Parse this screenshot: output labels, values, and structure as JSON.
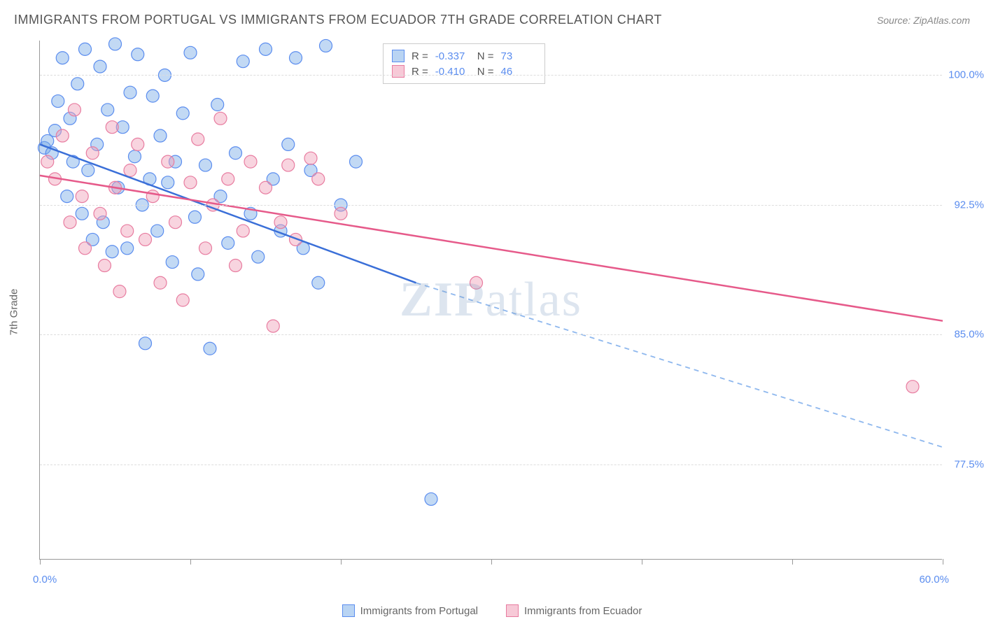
{
  "header": {
    "title": "IMMIGRANTS FROM PORTUGAL VS IMMIGRANTS FROM ECUADOR 7TH GRADE CORRELATION CHART",
    "source": "Source: ZipAtlas.com"
  },
  "axes": {
    "y_title": "7th Grade",
    "x_min_label": "0.0%",
    "x_max_label": "60.0%",
    "x_min": 0,
    "x_max": 60,
    "y_min": 72,
    "y_max": 102,
    "y_ticks": [
      77.5,
      85.0,
      92.5,
      100.0
    ],
    "y_tick_labels": [
      "77.5%",
      "85.0%",
      "92.5%",
      "100.0%"
    ],
    "x_tick_positions": [
      0,
      10,
      20,
      30,
      40,
      50,
      60
    ],
    "grid_color": "#dddddd",
    "axis_color": "#999999",
    "tick_label_color": "#5b8def",
    "label_fontsize": 15
  },
  "series": [
    {
      "name": "Immigrants from Portugal",
      "color_fill": "rgba(120,170,230,0.45)",
      "color_stroke": "#5b8def",
      "swatch_fill": "#b9d4f3",
      "swatch_border": "#5b8def",
      "correlation_r": "-0.337",
      "correlation_n": "73",
      "regression": {
        "x1": 0,
        "y1": 96.0,
        "x2": 25,
        "y2": 88.0,
        "x3": 60,
        "y3": 78.5,
        "solid_until_x": 25
      },
      "line_color_solid": "#3a6fd8",
      "line_color_dash": "#8fb8ee",
      "points": [
        [
          0.3,
          95.8
        ],
        [
          0.5,
          96.2
        ],
        [
          0.8,
          95.5
        ],
        [
          1.0,
          96.8
        ],
        [
          1.2,
          98.5
        ],
        [
          1.5,
          101.0
        ],
        [
          1.8,
          93.0
        ],
        [
          2.0,
          97.5
        ],
        [
          2.2,
          95.0
        ],
        [
          2.5,
          99.5
        ],
        [
          2.8,
          92.0
        ],
        [
          3.0,
          101.5
        ],
        [
          3.2,
          94.5
        ],
        [
          3.5,
          90.5
        ],
        [
          3.8,
          96.0
        ],
        [
          4.0,
          100.5
        ],
        [
          4.2,
          91.5
        ],
        [
          4.5,
          98.0
        ],
        [
          4.8,
          89.8
        ],
        [
          5.0,
          101.8
        ],
        [
          5.2,
          93.5
        ],
        [
          5.5,
          97.0
        ],
        [
          5.8,
          90.0
        ],
        [
          6.0,
          99.0
        ],
        [
          6.3,
          95.3
        ],
        [
          6.5,
          101.2
        ],
        [
          6.8,
          92.5
        ],
        [
          7.0,
          84.5
        ],
        [
          7.3,
          94.0
        ],
        [
          7.5,
          98.8
        ],
        [
          7.8,
          91.0
        ],
        [
          8.0,
          96.5
        ],
        [
          8.3,
          100.0
        ],
        [
          8.5,
          93.8
        ],
        [
          8.8,
          89.2
        ],
        [
          9.0,
          95.0
        ],
        [
          9.5,
          97.8
        ],
        [
          10.0,
          101.3
        ],
        [
          10.3,
          91.8
        ],
        [
          10.5,
          88.5
        ],
        [
          11.0,
          94.8
        ],
        [
          11.3,
          84.2
        ],
        [
          11.8,
          98.3
        ],
        [
          12.0,
          93.0
        ],
        [
          12.5,
          90.3
        ],
        [
          13.0,
          95.5
        ],
        [
          13.5,
          100.8
        ],
        [
          14.0,
          92.0
        ],
        [
          14.5,
          89.5
        ],
        [
          15.0,
          101.5
        ],
        [
          15.5,
          94.0
        ],
        [
          16.0,
          91.0
        ],
        [
          16.5,
          96.0
        ],
        [
          17.0,
          101.0
        ],
        [
          17.5,
          90.0
        ],
        [
          18.0,
          94.5
        ],
        [
          18.5,
          88.0
        ],
        [
          19.0,
          101.7
        ],
        [
          20.0,
          92.5
        ],
        [
          21.0,
          95.0
        ],
        [
          26.0,
          75.5
        ]
      ]
    },
    {
      "name": "Immigrants from Ecuador",
      "color_fill": "rgba(240,160,185,0.45)",
      "color_stroke": "#e87ca0",
      "swatch_fill": "#f7c9d7",
      "swatch_border": "#e87ca0",
      "correlation_r": "-0.410",
      "correlation_n": "46",
      "regression": {
        "x1": 0,
        "y1": 94.2,
        "x2": 60,
        "y2": 85.8,
        "solid_until_x": 60
      },
      "line_color_solid": "#e65a8a",
      "points": [
        [
          0.5,
          95.0
        ],
        [
          1.0,
          94.0
        ],
        [
          1.5,
          96.5
        ],
        [
          2.0,
          91.5
        ],
        [
          2.3,
          98.0
        ],
        [
          2.8,
          93.0
        ],
        [
          3.0,
          90.0
        ],
        [
          3.5,
          95.5
        ],
        [
          4.0,
          92.0
        ],
        [
          4.3,
          89.0
        ],
        [
          4.8,
          97.0
        ],
        [
          5.0,
          93.5
        ],
        [
          5.3,
          87.5
        ],
        [
          5.8,
          91.0
        ],
        [
          6.0,
          94.5
        ],
        [
          6.5,
          96.0
        ],
        [
          7.0,
          90.5
        ],
        [
          7.5,
          93.0
        ],
        [
          8.0,
          88.0
        ],
        [
          8.5,
          95.0
        ],
        [
          9.0,
          91.5
        ],
        [
          9.5,
          87.0
        ],
        [
          10.0,
          93.8
        ],
        [
          10.5,
          96.3
        ],
        [
          11.0,
          90.0
        ],
        [
          11.5,
          92.5
        ],
        [
          12.0,
          97.5
        ],
        [
          12.5,
          94.0
        ],
        [
          13.0,
          89.0
        ],
        [
          13.5,
          91.0
        ],
        [
          14.0,
          95.0
        ],
        [
          15.0,
          93.5
        ],
        [
          15.5,
          85.5
        ],
        [
          16.0,
          91.5
        ],
        [
          16.5,
          94.8
        ],
        [
          17.0,
          90.5
        ],
        [
          18.0,
          95.2
        ],
        [
          18.5,
          94.0
        ],
        [
          20.0,
          92.0
        ],
        [
          29.0,
          88.0
        ],
        [
          58.0,
          82.0
        ]
      ]
    }
  ],
  "legend_stats": {
    "r_label": "R =",
    "n_label": "N ="
  },
  "watermark": {
    "part1": "ZIP",
    "part2": "atlas"
  },
  "style": {
    "background_color": "#ffffff",
    "marker_radius": 9,
    "line_width": 2.5,
    "title_fontsize": 18,
    "title_color": "#555555"
  }
}
